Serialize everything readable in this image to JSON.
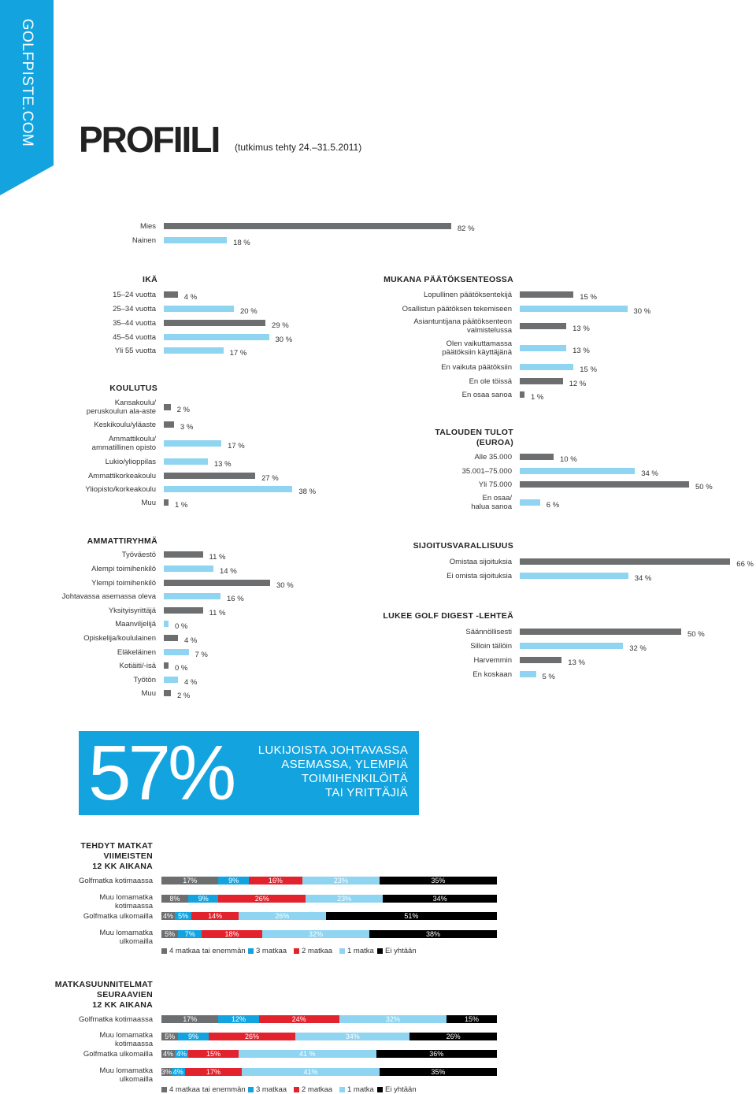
{
  "brand": "GOLFPISTE.COM",
  "title": "PROFIILI",
  "subtitle": "(tutkimus tehty 24.–31.5.2011)",
  "colors": {
    "accent": "#13a4e0",
    "dark_bar": "#6d6e70",
    "light_bar": "#8fd4f0",
    "cat_4plus": "#6d6e70",
    "cat_3": "#13a4e0",
    "cat_2": "#e2222d",
    "cat_1": "#8fd4f0",
    "cat_0": "#000000"
  },
  "callout": {
    "big": "57%",
    "text_lines": [
      "LUKIJOISTA JOHTAVASSA",
      "ASEMASSA, YLEMPIÄ",
      "TOIMIHENKILÖITÄ",
      "TAI YRITTÄJIÄ"
    ]
  },
  "chart_data": [
    {
      "id": "sukupuoli",
      "type": "bar",
      "title": "",
      "categories": [
        "Mies",
        "Nainen"
      ],
      "values": [
        82,
        18
      ],
      "labels": [
        "82 %",
        "18 %"
      ]
    },
    {
      "id": "ika",
      "type": "bar",
      "title": "IKÄ",
      "categories": [
        "15–24 vuotta",
        "25–34 vuotta",
        "35–44 vuotta",
        "45–54 vuotta",
        "Yli 55 vuotta"
      ],
      "values": [
        4,
        20,
        29,
        30,
        17
      ],
      "labels": [
        "4 %",
        "20 %",
        "29 %",
        "30 %",
        "17 %"
      ]
    },
    {
      "id": "koulutus",
      "type": "bar",
      "title": "KOULUTUS",
      "categories": [
        "Kansakoulu/ peruskoulun ala-aste",
        "Keskikoulu/yläaste",
        "Ammattikoulu/ ammatillinen opisto",
        "Lukio/ylioppilas",
        "Ammattikorkeakoulu",
        "Yliopisto/korkeakoulu",
        "Muu"
      ],
      "values": [
        2,
        3,
        17,
        13,
        27,
        38,
        1
      ],
      "labels": [
        "2 %",
        "3 %",
        "17 %",
        "13 %",
        "27 %",
        "38 %",
        "1 %"
      ]
    },
    {
      "id": "paatokset",
      "type": "bar",
      "title": "MUKANA PÄÄTÖKSENTEOSSA",
      "categories": [
        "Lopullinen päätöksentekijä",
        "Osallistun päätöksen tekemiseen",
        "Asiantuntijana päätöksenteon valmistelussa",
        "Olen vaikuttamassa päätöksiin käyttäjänä",
        "En vaikuta päätöksiin",
        "En ole töissä",
        "En osaa sanoa"
      ],
      "values": [
        15,
        30,
        13,
        13,
        15,
        12,
        1
      ],
      "labels": [
        "15 %",
        "30 %",
        "13 %",
        "13 %",
        "15 %",
        "12 %",
        "1 %"
      ]
    },
    {
      "id": "tulot",
      "type": "bar",
      "title": "TALOUDEN TULOT (EUROA)",
      "categories": [
        "Alle 35.000",
        "35.001–75.000",
        "Yli 75.000",
        "En osaa/ halua sanoa"
      ],
      "values": [
        10,
        34,
        50,
        6
      ],
      "labels": [
        "10 %",
        "34 %",
        "50 %",
        "6 %"
      ]
    },
    {
      "id": "ammattiryhma",
      "type": "bar",
      "title": "AMMATTIRYHMÄ",
      "categories": [
        "Työväestö",
        "Alempi toimihenkilö",
        "Ylempi toimihenkilö",
        "Johtavassa asemassa oleva",
        "Yksityisyrittäjä",
        "Maanviljelijä",
        "Opiskelija/koululainen",
        "Eläkeläinen",
        "Kotiäiti/-isä",
        "Työtön",
        "Muu"
      ],
      "values": [
        11,
        14,
        30,
        16,
        11,
        0,
        4,
        7,
        0,
        4,
        2
      ],
      "labels": [
        "11 %",
        "14 %",
        "30 %",
        "16 %",
        "11 %",
        "0 %",
        "4 %",
        "7 %",
        "0 %",
        "4 %",
        "2 %"
      ]
    },
    {
      "id": "sijoitus",
      "type": "bar",
      "title": "SIJOITUSVARALLISUUS",
      "categories": [
        "Omistaa sijoituksia",
        "Ei omista sijoituksia"
      ],
      "values": [
        66,
        34
      ],
      "labels": [
        "66 %",
        "34 %"
      ]
    },
    {
      "id": "golfdigest",
      "type": "bar",
      "title": "LUKEE GOLF DIGEST -LEHTEÄ",
      "categories": [
        "Säännöllisesti",
        "Silloin tällöin",
        "Harvemmin",
        "En koskaan"
      ],
      "values": [
        50,
        32,
        13,
        5
      ],
      "labels": [
        "50 %",
        "32 %",
        "13 %",
        "5 %"
      ]
    },
    {
      "id": "matkat",
      "type": "bar",
      "stacked": true,
      "title": "TEHDYT MATKAT VIIMEISTEN 12 KK AIKANA",
      "categories": [
        "Golfmatka kotimaassa",
        "Muu lomamatka kotimaassa",
        "Golfmatka ulkomailla",
        "Muu lomamatka ulkomailla"
      ],
      "series": [
        {
          "name": "4 matkaa tai enemmän",
          "values": [
            17,
            8,
            4,
            5
          ],
          "labels": [
            "17%",
            "8%",
            "4%",
            "5%"
          ]
        },
        {
          "name": "3 matkaa",
          "values": [
            9,
            9,
            5,
            7
          ],
          "labels": [
            "9%",
            "9%",
            "5%",
            "7%"
          ]
        },
        {
          "name": "2 matkaa",
          "values": [
            16,
            26,
            14,
            18
          ],
          "labels": [
            "16%",
            "26%",
            "14%",
            "18%"
          ]
        },
        {
          "name": "1 matka",
          "values": [
            23,
            23,
            26,
            32
          ],
          "labels": [
            "23%",
            "23%",
            "26%",
            "32%"
          ]
        },
        {
          "name": "Ei yhtään",
          "values": [
            35,
            34,
            51,
            38
          ],
          "labels": [
            "35%",
            "34%",
            "51%",
            "38%"
          ]
        }
      ]
    },
    {
      "id": "suunnitelmat",
      "type": "bar",
      "stacked": true,
      "title": "MATKASUUNNITELMAT SEURAAVIEN 12 KK AIKANA",
      "categories": [
        "Golfmatka kotimaassa",
        "Muu lomamatka kotimaassa",
        "Golfmatka ulkomailla",
        "Muu lomamatka ulkomailla"
      ],
      "series": [
        {
          "name": "4 matkaa tai enemmän",
          "values": [
            17,
            5,
            4,
            3
          ],
          "labels": [
            "17%",
            "5%",
            "4%",
            "3%"
          ]
        },
        {
          "name": "3 matkaa",
          "values": [
            12,
            9,
            4,
            4
          ],
          "labels": [
            "12%",
            "9%",
            "4%",
            "4%"
          ]
        },
        {
          "name": "2 matkaa",
          "values": [
            24,
            26,
            15,
            17
          ],
          "labels": [
            "24%",
            "26%",
            "15%",
            "17%"
          ]
        },
        {
          "name": "1 matka",
          "values": [
            32,
            34,
            41,
            41
          ],
          "labels": [
            "32%",
            "34%",
            "41 %",
            "41%"
          ]
        },
        {
          "name": "Ei yhtään",
          "values": [
            15,
            26,
            36,
            35
          ],
          "labels": [
            "15%",
            "26%",
            "36%",
            "35%"
          ]
        }
      ]
    }
  ]
}
